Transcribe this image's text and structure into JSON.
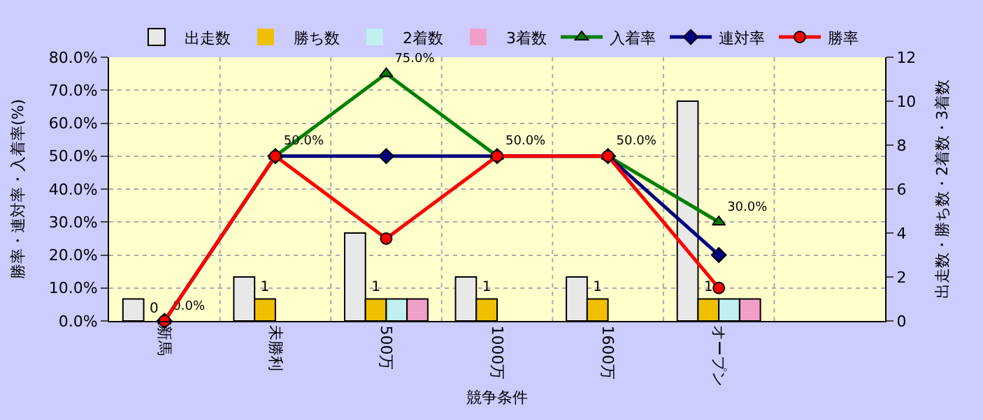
{
  "chart_data": {
    "type": "bar",
    "categories": [
      "新馬",
      "未勝利",
      "500万",
      "1000万",
      "1600万",
      "オープン",
      null
    ],
    "xlabel": "競争条件",
    "ylabel": "勝率・連対率・入着率(%)",
    "y2label": "出走数・勝ち数・2着数・3着数",
    "ylim": [
      0,
      80
    ],
    "yticks": [
      {
        "value": 0,
        "label": "0.0%"
      },
      {
        "value": 10,
        "label": "10.0%"
      },
      {
        "value": 20,
        "label": "20.0%"
      },
      {
        "value": 30,
        "label": "30.0%"
      },
      {
        "value": 40,
        "label": "40.0%"
      },
      {
        "value": 50,
        "label": "50.0%"
      },
      {
        "value": 60,
        "label": "60.0%"
      },
      {
        "value": 70,
        "label": "70.0%"
      },
      {
        "value": 80,
        "label": "80.0%"
      }
    ],
    "y2lim": [
      0,
      12
    ],
    "y2ticks": [
      0,
      2,
      4,
      6,
      8,
      10,
      12
    ],
    "grid": true,
    "legend": "top",
    "series": [
      {
        "name": "出走数",
        "axis": "y2",
        "color": "#e8e8e8",
        "values": [
          1,
          2,
          4,
          2,
          2,
          10,
          null
        ]
      },
      {
        "name": "勝ち数",
        "axis": "y2",
        "color": "#f0c000",
        "values": [
          0,
          1,
          1,
          1,
          1,
          1,
          null
        ],
        "value_labels": [
          "0",
          "1",
          "1",
          "1",
          "1",
          "1",
          null
        ]
      },
      {
        "name": "2着数",
        "axis": "y2",
        "color": "#c0f0f0",
        "values": [
          0,
          0,
          1,
          0,
          0,
          1,
          null
        ]
      },
      {
        "name": "3着数",
        "axis": "y2",
        "color": "#f0a0c8",
        "values": [
          0,
          0,
          1,
          0,
          0,
          1,
          null
        ]
      },
      {
        "name": "入着率",
        "type": "line",
        "color": "#008000",
        "marker": "triangle",
        "values": [
          0,
          50,
          75,
          50,
          50,
          30,
          null
        ],
        "value_labels": [
          "0.0%",
          "50.0%",
          "75.0%",
          "50.0%",
          "50.0%",
          "30.0%",
          null
        ]
      },
      {
        "name": "連対率",
        "type": "line",
        "color": "#000080",
        "marker": "diamond",
        "values": [
          0,
          50,
          50,
          50,
          50,
          20,
          null
        ]
      },
      {
        "name": "勝率",
        "type": "line",
        "color": "#ff0000",
        "marker": "circle",
        "values": [
          0,
          50,
          25,
          50,
          50,
          10,
          null
        ]
      }
    ]
  }
}
